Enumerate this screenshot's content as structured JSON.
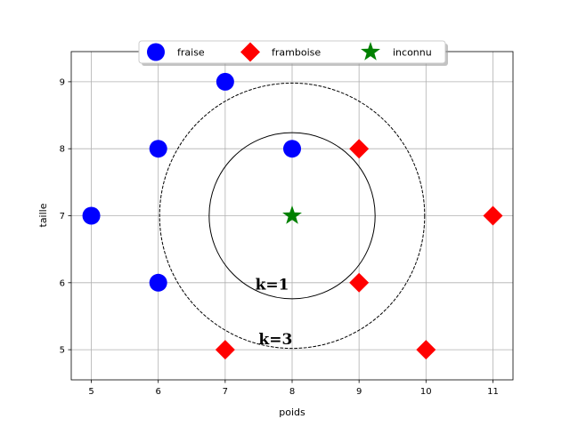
{
  "chart_data": {
    "type": "scatter",
    "title": "",
    "xlabel": "poids",
    "ylabel": "taille",
    "xlim": [
      4.7,
      11.3
    ],
    "ylim": [
      4.55,
      9.45
    ],
    "xticks": [
      5,
      6,
      7,
      8,
      9,
      10,
      11
    ],
    "yticks": [
      5,
      6,
      7,
      8,
      9
    ],
    "xtick_labels": [
      "5",
      "6",
      "7",
      "8",
      "9",
      "10",
      "11"
    ],
    "ytick_labels": [
      "5",
      "6",
      "7",
      "8",
      "9"
    ],
    "grid": true,
    "legend_position": "top-center",
    "series": [
      {
        "name": "fraise",
        "marker": "circle",
        "color": "#0000ff",
        "points": [
          [
            5,
            7
          ],
          [
            6,
            8
          ],
          [
            6,
            6
          ],
          [
            7,
            9
          ],
          [
            8,
            8
          ]
        ]
      },
      {
        "name": "framboise",
        "marker": "diamond",
        "color": "#ff0000",
        "points": [
          [
            7,
            5
          ],
          [
            9,
            8
          ],
          [
            9,
            6
          ],
          [
            10,
            5
          ],
          [
            11,
            7
          ]
        ]
      },
      {
        "name": "inconnu",
        "marker": "star",
        "color": "#008000",
        "points": [
          [
            8,
            7
          ]
        ]
      }
    ],
    "circles": [
      {
        "center": [
          8,
          7
        ],
        "radius": 1.24,
        "style": "solid"
      },
      {
        "center": [
          8,
          7
        ],
        "radius": 1.98,
        "style": "dashed"
      }
    ],
    "annotations": [
      {
        "text": "k=1",
        "x": 7.45,
        "y": 5.9
      },
      {
        "text": "k=3",
        "x": 7.5,
        "y": 5.08
      }
    ]
  }
}
